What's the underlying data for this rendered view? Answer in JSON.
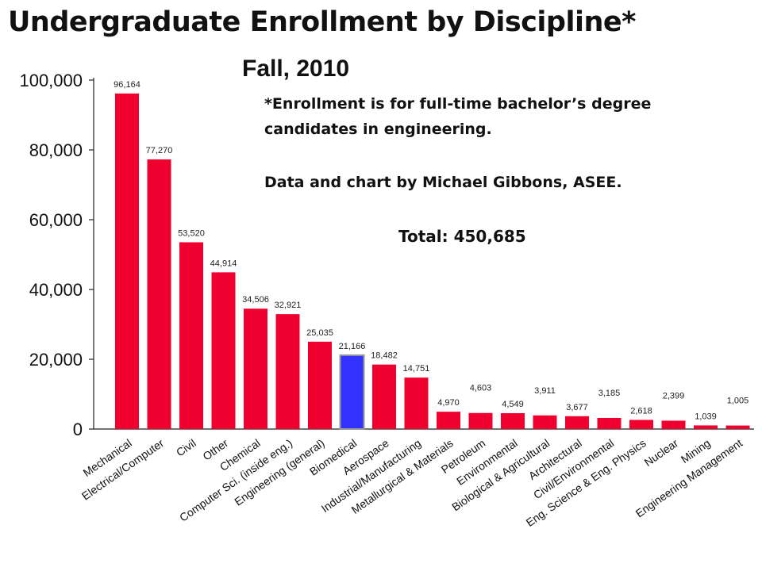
{
  "title": "Undergraduate Enrollment by Discipline*",
  "subtitle": "Fall, 2010",
  "notes": {
    "line1": "*Enrollment is for full-time bachelor’s degree",
    "line2": "candidates in engineering.",
    "credit": "Data and chart by Michael Gibbons, ASEE.",
    "total": "Total: 450,685"
  },
  "chart_data": {
    "type": "bar",
    "title": "Undergraduate Enrollment by Discipline*",
    "subtitle": "Fall, 2010",
    "xlabel": "",
    "ylabel": "",
    "ylim": [
      0,
      100000
    ],
    "yticks": [
      "0",
      "20,000",
      "40,000",
      "60,000",
      "80,000",
      "100,000"
    ],
    "grid": false,
    "colors": {
      "default": "#f0002e",
      "highlight": "#3333ff",
      "highlight_border": "#999999"
    },
    "categories": [
      "Mechanical",
      "Electrical/Computer",
      "Civil",
      "Other",
      "Chemical",
      "Computer Sci. (inside eng.)",
      "Engineering (general)",
      "Biomedical",
      "Aerospace",
      "Industrial/Manufacturing",
      "Metallurgical & Materials",
      "Petroleum",
      "Environmental",
      "Biological & Agricultural",
      "Architectural",
      "Civil/Environmental",
      "Eng. Science & Eng. Physics",
      "Nuclear",
      "Mining",
      "Engineering Management"
    ],
    "values": [
      96164,
      77270,
      53520,
      44914,
      34506,
      32921,
      25035,
      21166,
      18482,
      14751,
      4970,
      4603,
      4549,
      3911,
      3677,
      3185,
      2618,
      2399,
      1039,
      1005
    ],
    "value_labels": [
      "96,164",
      "77,270",
      "53,520",
      "44,914",
      "34,506",
      "32,921",
      "25,035",
      "21,166",
      "18,482",
      "14,751",
      "4,970",
      "4,603",
      "4,549",
      "3,911",
      "3,677",
      "3,185",
      "2,618",
      "2,399",
      "1,039",
      "1,005"
    ],
    "highlighted": [
      "Biomedical"
    ]
  }
}
